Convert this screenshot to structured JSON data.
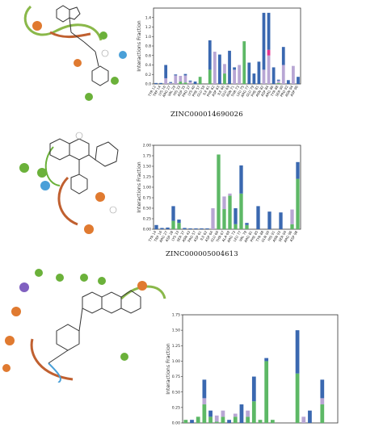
{
  "colors": {
    "hbond": "#5db866",
    "hydrophobic": "#b8a6d4",
    "ionic": "#e3338f",
    "water_bridge": "#3a68b0",
    "frame": "#333333"
  },
  "captions": [
    "ZINC000014690026",
    "ZINC000005004613"
  ],
  "chart_data": [
    {
      "type": "bar",
      "stacked": true,
      "ylabel": "Interactions Fraction",
      "ylim": [
        0,
        1.6
      ],
      "yticks": [
        "0.0",
        "0.2",
        "0.4",
        "0.6",
        "0.8",
        "1.0",
        "1.2",
        "1.4"
      ],
      "ytick_values": [
        0,
        0.2,
        0.4,
        0.6,
        0.8,
        1.0,
        1.2,
        1.4
      ],
      "categories": [
        "TYR 12",
        "TRP 14",
        "LYS 16",
        "ARG 27",
        "VAL 29",
        "HIS 33",
        "ASP 35",
        "PRO 37",
        "LYS 40",
        "PHE 57",
        "GLU 59",
        "ILE 61",
        "PHE 62",
        "ASP 63",
        "ILE 66",
        "GLU 69",
        "ASN 71",
        "THR 73",
        "LEU 75",
        "ARG 77",
        "GLU 79",
        "PHE 81",
        "ASN 82",
        "ASP 84",
        "ARG 86",
        "TYR 88",
        "SER 90",
        "PRO 92",
        "ASN 94",
        "ASP 96"
      ],
      "series": [
        {
          "color": "hbond",
          "values": [
            0.0,
            0.0,
            0.0,
            0.0,
            0.0,
            0.05,
            0.03,
            0.0,
            0.0,
            0.15,
            0.0,
            0.3,
            0.0,
            0.0,
            0.22,
            0.0,
            0.0,
            0.0,
            0.9,
            0.0,
            0.0,
            0.0,
            0.0,
            0.0,
            0.0,
            0.02,
            0.0,
            0.0,
            0.0,
            0.0
          ]
        },
        {
          "color": "hydrophobic",
          "values": [
            0.0,
            0.0,
            0.12,
            0.02,
            0.18,
            0.12,
            0.15,
            0.05,
            0.0,
            0.0,
            0.0,
            0.0,
            0.68,
            0.0,
            0.2,
            0.0,
            0.3,
            0.4,
            0.0,
            0.0,
            0.0,
            0.0,
            0.3,
            0.6,
            0.0,
            0.05,
            0.4,
            0.0,
            0.38,
            0.0
          ]
        },
        {
          "color": "ionic",
          "values": [
            0.0,
            0.0,
            0.0,
            0.0,
            0.0,
            0.0,
            0.0,
            0.0,
            0.0,
            0.0,
            0.0,
            0.0,
            0.0,
            0.0,
            0.0,
            0.0,
            0.0,
            0.0,
            0.0,
            0.0,
            0.0,
            0.0,
            0.0,
            0.12,
            0.0,
            0.0,
            0.0,
            0.0,
            0.0,
            0.0
          ]
        },
        {
          "color": "water_bridge",
          "values": [
            0.02,
            0.02,
            0.28,
            0.02,
            0.02,
            0.0,
            0.03,
            0.02,
            0.05,
            0.0,
            0.0,
            0.62,
            0.0,
            0.62,
            0.0,
            0.7,
            0.05,
            0.0,
            0.0,
            0.45,
            0.22,
            0.47,
            1.2,
            0.78,
            0.35,
            0.02,
            0.38,
            0.08,
            0.0,
            0.15
          ]
        }
      ]
    },
    {
      "type": "bar",
      "stacked": true,
      "ylabel": "Interactions Fraction",
      "ylim": [
        0,
        2.0
      ],
      "yticks": [
        "0.00",
        "0.25",
        "0.50",
        "0.75",
        "1.00",
        "1.25",
        "1.50",
        "1.75",
        "2.00"
      ],
      "ytick_values": [
        0,
        0.25,
        0.5,
        0.75,
        1.0,
        1.25,
        1.5,
        1.75,
        2.0
      ],
      "categories": [
        "TYR 14",
        "TRP 16",
        "ARG 27",
        "ASP 28",
        "LYS 33",
        "SER 37",
        "ASN 43",
        "PRO 57",
        "ASP 61",
        "ILE 62",
        "ASP 64",
        "GLU 66",
        "THR 67",
        "ALA 69",
        "ARG 73",
        "LEU 77",
        "VAL 79",
        "ARG 81",
        "PHE 85",
        "TYR 88",
        "GLN 90",
        "HIS 91",
        "ASN 93",
        "SER 94",
        "ARG 96",
        "ASP 98"
      ],
      "series": [
        {
          "color": "hbond",
          "values": [
            0.0,
            0.0,
            0.0,
            0.2,
            0.15,
            0.0,
            0.0,
            0.0,
            0.0,
            0.0,
            0.0,
            1.78,
            0.48,
            0.8,
            0.12,
            0.85,
            0.1,
            0.0,
            0.0,
            0.0,
            0.0,
            0.0,
            0.0,
            0.0,
            0.12,
            1.2
          ]
        },
        {
          "color": "hydrophobic",
          "values": [
            0.0,
            0.0,
            0.0,
            0.0,
            0.0,
            0.0,
            0.0,
            0.0,
            0.0,
            0.0,
            0.5,
            0.0,
            0.3,
            0.05,
            0.0,
            0.0,
            0.0,
            0.0,
            0.0,
            0.0,
            0.0,
            0.0,
            0.0,
            0.0,
            0.35,
            0.0
          ]
        },
        {
          "color": "ionic",
          "values": [
            0,
            0,
            0,
            0,
            0,
            0,
            0,
            0,
            0,
            0,
            0,
            0,
            0,
            0,
            0,
            0,
            0,
            0,
            0,
            0,
            0,
            0,
            0,
            0,
            0,
            0
          ]
        },
        {
          "color": "water_bridge",
          "values": [
            0.1,
            0.03,
            0.04,
            0.35,
            0.08,
            0.03,
            0.02,
            0.02,
            0.02,
            0.02,
            0.0,
            0.0,
            0.0,
            0.0,
            0.38,
            0.67,
            0.05,
            0.0,
            0.55,
            0.0,
            0.42,
            0.0,
            0.4,
            0.0,
            0.0,
            0.4
          ]
        }
      ]
    },
    {
      "type": "bar",
      "stacked": true,
      "ylabel": "Interactions Fraction",
      "ylim": [
        0,
        1.75
      ],
      "yticks": [
        "0.00",
        "0.25",
        "0.50",
        "0.75",
        "1.00",
        "1.25",
        "1.50",
        "1.75"
      ],
      "ytick_values": [
        0,
        0.25,
        0.5,
        0.75,
        1.0,
        1.25,
        1.5,
        1.75
      ],
      "categories": [
        "c1",
        "c2",
        "c3",
        "c4",
        "c5",
        "c6",
        "c7",
        "c8",
        "c9",
        "c10",
        "c11",
        "c12",
        "c13",
        "c14",
        "c15",
        "c16",
        "c17",
        "c18",
        "c19",
        "c20",
        "c21",
        "c22",
        "c23",
        "c24",
        "c25"
      ],
      "series": [
        {
          "color": "hbond",
          "values": [
            0.05,
            0.0,
            0.1,
            0.3,
            0.1,
            0.02,
            0.1,
            0.0,
            0.1,
            0.0,
            0.1,
            0.35,
            0.05,
            1.0,
            0.05,
            0.0,
            0.0,
            0.0,
            0.8,
            0.0,
            0.0,
            0.0,
            0.3,
            0.0,
            0.0
          ]
        },
        {
          "color": "hydrophobic",
          "values": [
            0.0,
            0.0,
            0.0,
            0.1,
            0.0,
            0.1,
            0.1,
            0.0,
            0.05,
            0.0,
            0.1,
            0.0,
            0.0,
            0.0,
            0.0,
            0.0,
            0.0,
            0.0,
            0.0,
            0.1,
            0.0,
            0.0,
            0.1,
            0.0,
            0.0
          ]
        },
        {
          "color": "ionic",
          "values": [
            0,
            0,
            0,
            0,
            0,
            0,
            0,
            0,
            0,
            0,
            0,
            0,
            0,
            0,
            0,
            0,
            0,
            0,
            0,
            0,
            0,
            0,
            0,
            0,
            0
          ]
        },
        {
          "color": "water_bridge",
          "values": [
            0.0,
            0.05,
            0.0,
            0.3,
            0.1,
            0.0,
            0.0,
            0.05,
            0.0,
            0.3,
            0.0,
            0.4,
            0.0,
            0.05,
            0.0,
            0.0,
            0.0,
            0.0,
            0.7,
            0.0,
            0.2,
            0.0,
            0.3,
            0.0,
            0.0
          ]
        }
      ]
    }
  ]
}
